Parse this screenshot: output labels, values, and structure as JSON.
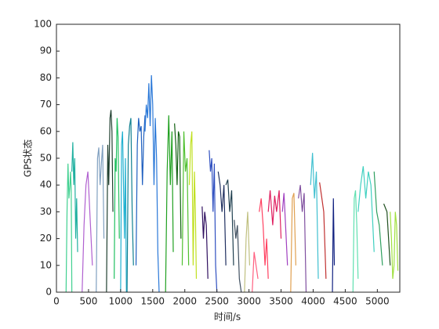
{
  "chart_data": {
    "type": "line",
    "x_label": "时间/s",
    "y_label": "GPS状态",
    "xlim": [
      0,
      5350
    ],
    "ylim": [
      0,
      100
    ],
    "xticks": [
      0,
      500,
      1000,
      1500,
      2000,
      2500,
      3000,
      3500,
      4000,
      4500,
      5000
    ],
    "yticks": [
      0,
      10,
      20,
      30,
      40,
      50,
      60,
      70,
      80,
      90,
      100
    ],
    "series": [
      {
        "color": "#40d090",
        "x": [
          150,
          165,
          180,
          195,
          210,
          220,
          230,
          240
        ],
        "values": [
          0,
          30,
          48,
          35,
          40,
          45,
          38,
          0
        ]
      },
      {
        "color": "#20b0a0",
        "x": [
          240,
          255,
          270,
          285,
          300,
          315,
          330
        ],
        "values": [
          45,
          56,
          40,
          50,
          20,
          35,
          15
        ]
      },
      {
        "color": "#b060d0",
        "x": [
          400,
          430,
          460,
          490,
          520,
          560
        ],
        "values": [
          0,
          25,
          40,
          45,
          30,
          10
        ]
      },
      {
        "color": "#80a0c0",
        "x": [
          620,
          640,
          660,
          680,
          700,
          720,
          740
        ],
        "values": [
          0,
          50,
          54,
          40,
          48,
          55,
          20
        ]
      },
      {
        "color": "#204030",
        "x": [
          780,
          800,
          815,
          835,
          850,
          865,
          880
        ],
        "values": [
          0,
          55,
          40,
          65,
          68,
          60,
          30
        ]
      },
      {
        "color": "#20c060",
        "x": [
          900,
          915,
          930,
          945,
          960,
          980
        ],
        "values": [
          5,
          50,
          45,
          65,
          58,
          20
        ]
      },
      {
        "color": "#20b0d0",
        "x": [
          1000,
          1015,
          1030,
          1045,
          1060,
          1075,
          1090
        ],
        "values": [
          0,
          55,
          60,
          40,
          20,
          50,
          0
        ]
      },
      {
        "color": "#108090",
        "x": [
          1100,
          1120,
          1140,
          1160,
          1180,
          1200
        ],
        "values": [
          0,
          55,
          62,
          65,
          30,
          10
        ]
      },
      {
        "color": "#2060c0",
        "x": [
          1240,
          1260,
          1280,
          1300,
          1320,
          1340,
          1360,
          1380
        ],
        "values": [
          10,
          55,
          65,
          60,
          62,
          40,
          58,
          66
        ]
      },
      {
        "color": "#2a78d8",
        "x": [
          1380,
          1400,
          1420,
          1440,
          1460,
          1480,
          1500,
          1520,
          1540,
          1560,
          1580,
          1600
        ],
        "values": [
          60,
          70,
          65,
          78,
          62,
          81,
          70,
          40,
          65,
          50,
          15,
          0
        ]
      },
      {
        "color": "#20a020",
        "x": [
          1700,
          1725,
          1750,
          1775,
          1800,
          1820
        ],
        "values": [
          0,
          45,
          66,
          40,
          60,
          15
        ]
      },
      {
        "color": "#106010",
        "x": [
          1840,
          1860,
          1880,
          1900,
          1920,
          1940
        ],
        "values": [
          63,
          55,
          40,
          60,
          58,
          20
        ]
      },
      {
        "color": "#50c030",
        "x": [
          1960,
          1985,
          2010,
          2035,
          2060
        ],
        "values": [
          10,
          60,
          45,
          50,
          10
        ]
      },
      {
        "color": "#c0e020",
        "x": [
          2070,
          2090,
          2110,
          2130,
          2150,
          2165,
          2180
        ],
        "values": [
          40,
          55,
          60,
          10,
          45,
          30,
          5
        ]
      },
      {
        "color": "#301060",
        "x": [
          2270,
          2290,
          2310,
          2335,
          2360
        ],
        "values": [
          32,
          20,
          30,
          25,
          5
        ]
      },
      {
        "color": "#3050c0",
        "x": [
          2380,
          2400,
          2420,
          2440,
          2460,
          2480,
          2500
        ],
        "values": [
          53,
          45,
          50,
          30,
          48,
          10,
          0
        ]
      },
      {
        "color": "#203060",
        "x": [
          2520,
          2550,
          2580,
          2610,
          2640
        ],
        "values": [
          45,
          40,
          30,
          40,
          10
        ]
      },
      {
        "color": "#204050",
        "x": [
          2640,
          2670,
          2700,
          2730,
          2760
        ],
        "values": [
          40,
          42,
          30,
          38,
          10
        ]
      },
      {
        "color": "#405060",
        "x": [
          2770,
          2795,
          2820,
          2850,
          2880
        ],
        "values": [
          27,
          20,
          25,
          5,
          0
        ]
      },
      {
        "color": "#c0c080",
        "x": [
          2930,
          2955,
          2980,
          3010
        ],
        "values": [
          0,
          20,
          30,
          10
        ]
      },
      {
        "color": "#ff6080",
        "x": [
          3050,
          3080,
          3110,
          3140
        ],
        "values": [
          0,
          15,
          10,
          5
        ]
      },
      {
        "color": "#ff4060",
        "x": [
          3160,
          3190,
          3220,
          3250,
          3275,
          3300
        ],
        "values": [
          30,
          35,
          25,
          10,
          20,
          5
        ]
      },
      {
        "color": "#e02060",
        "x": [
          3300,
          3330,
          3370,
          3400,
          3430,
          3470,
          3500
        ],
        "values": [
          30,
          38,
          25,
          36,
          30,
          38,
          20
        ]
      },
      {
        "color": "#a040c0",
        "x": [
          3520,
          3545,
          3570,
          3600
        ],
        "values": [
          30,
          37,
          25,
          10
        ]
      },
      {
        "color": "#e0a050",
        "x": [
          3650,
          3675,
          3700,
          3730
        ],
        "values": [
          0,
          35,
          37,
          10
        ]
      },
      {
        "color": "#8050a0",
        "x": [
          3770,
          3800,
          3830,
          3860,
          3890
        ],
        "values": [
          35,
          40,
          30,
          37,
          0
        ]
      },
      {
        "color": "#40c0d0",
        "x": [
          3960,
          3990,
          4020,
          4050,
          4080
        ],
        "values": [
          40,
          52,
          35,
          45,
          5
        ]
      },
      {
        "color": "#c03030",
        "x": [
          4100,
          4130,
          4165,
          4200
        ],
        "values": [
          41,
          36,
          30,
          5
        ]
      },
      {
        "color": "#102080",
        "x": [
          4300,
          4315,
          4330
        ],
        "values": [
          0,
          35,
          10
        ]
      },
      {
        "color": "#60e0b0",
        "x": [
          4620,
          4640,
          4660,
          4680,
          4700
        ],
        "values": [
          0,
          35,
          38,
          25,
          5
        ]
      },
      {
        "color": "#40d0c0",
        "x": [
          4700,
          4740,
          4780,
          4820,
          4860,
          4900,
          4950
        ],
        "values": [
          30,
          40,
          47,
          35,
          45,
          40,
          15
        ]
      },
      {
        "color": "#30a060",
        "x": [
          4950,
          4990,
          5030,
          5080
        ],
        "values": [
          45,
          30,
          25,
          10
        ]
      },
      {
        "color": "#205020",
        "x": [
          5100,
          5150,
          5200
        ],
        "values": [
          33,
          30,
          10
        ]
      },
      {
        "color": "#a0e040",
        "x": [
          5200,
          5220,
          5240,
          5260,
          5280,
          5300,
          5320
        ],
        "values": [
          30,
          20,
          5,
          10,
          30,
          25,
          8
        ]
      }
    ]
  }
}
